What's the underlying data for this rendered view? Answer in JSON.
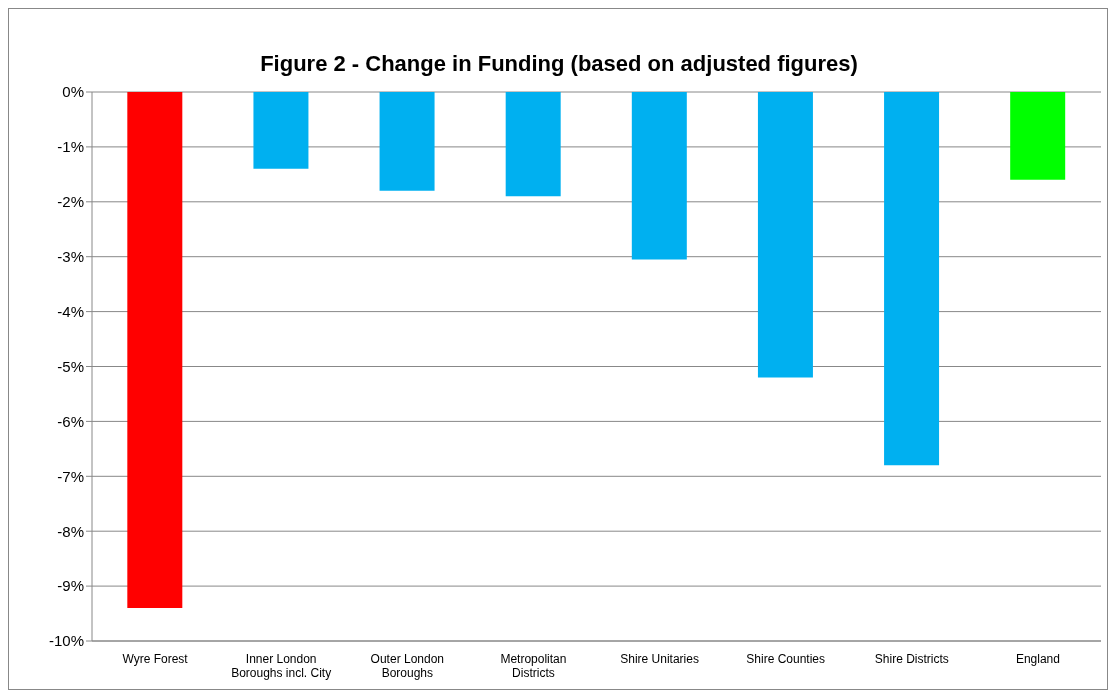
{
  "chart_data": {
    "type": "bar",
    "title": "Figure 2 - Change in Funding (based on adjusted figures)",
    "categories": [
      "Wyre Forest",
      "Inner London Boroughs incl. City",
      "Outer London Boroughs",
      "Metropolitan Districts",
      "Shire Unitaries",
      "Shire Counties",
      "Shire Districts",
      "England"
    ],
    "values": [
      -9.4,
      -1.4,
      -1.8,
      -1.9,
      -3.05,
      -5.2,
      -6.8,
      -1.6
    ],
    "colors": [
      "#ff0000",
      "#00b0f0",
      "#00b0f0",
      "#00b0f0",
      "#00b0f0",
      "#00b0f0",
      "#00b0f0",
      "#00ff00"
    ],
    "ylim": [
      -10,
      0
    ],
    "yticks": [
      {
        "value": 0,
        "label": "0%"
      },
      {
        "value": -1,
        "label": "-1%"
      },
      {
        "value": -2,
        "label": "-2%"
      },
      {
        "value": -3,
        "label": "-3%"
      },
      {
        "value": -4,
        "label": "-4%"
      },
      {
        "value": -5,
        "label": "-5%"
      },
      {
        "value": -6,
        "label": "-6%"
      },
      {
        "value": -7,
        "label": "-7%"
      },
      {
        "value": -8,
        "label": "-8%"
      },
      {
        "value": -9,
        "label": "-9%"
      },
      {
        "value": -10,
        "label": "-10%"
      }
    ],
    "grid": "y"
  }
}
